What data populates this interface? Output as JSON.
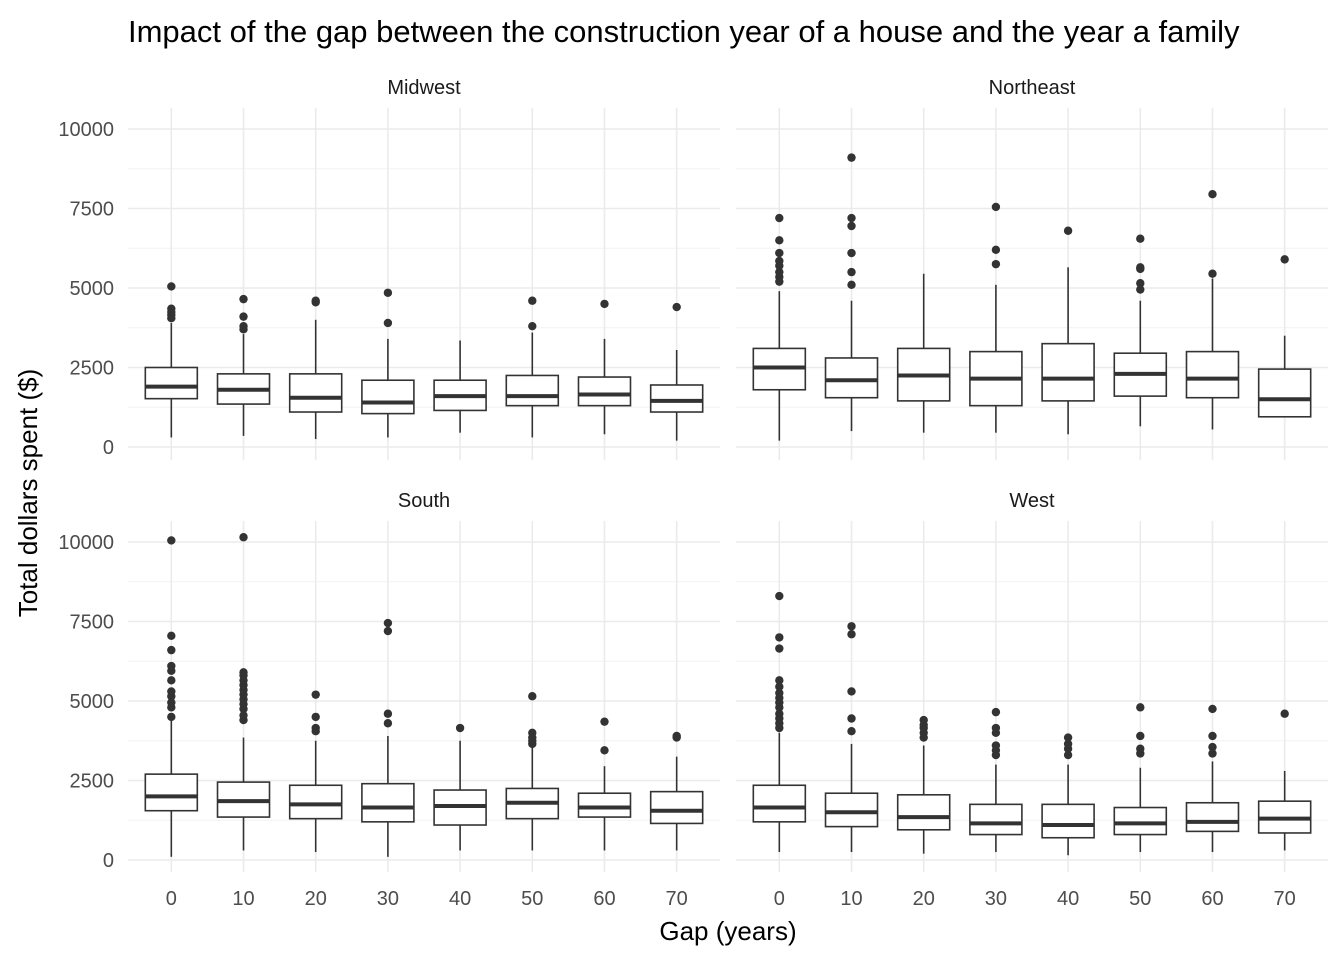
{
  "chart_data": {
    "type": "box",
    "title": "Impact of the gap between the construction year of a house and the year a family",
    "xlabel": "Gap (years)",
    "ylabel": "Total dollars spent ($)",
    "x_ticks": [
      0,
      10,
      20,
      30,
      40,
      50,
      60,
      70
    ],
    "y_ticks": [
      0,
      2500,
      5000,
      7500,
      10000
    ],
    "ylim": [
      -350,
      10600
    ],
    "xlim": [
      -6,
      76
    ],
    "grid": true,
    "box_color": "#333333",
    "panel_order": [
      "Midwest",
      "Northeast",
      "South",
      "West"
    ],
    "facets": [
      {
        "name": "Midwest",
        "boxes": [
          {
            "x": 0,
            "min": 300,
            "q1": 1520,
            "median": 1900,
            "q3": 2500,
            "max": 3900,
            "outliers": [
              4050,
              4150,
              4250,
              4350,
              5050
            ]
          },
          {
            "x": 10,
            "min": 350,
            "q1": 1350,
            "median": 1800,
            "q3": 2300,
            "max": 3550,
            "outliers": [
              3700,
              3800,
              4100,
              4650
            ]
          },
          {
            "x": 20,
            "min": 250,
            "q1": 1100,
            "median": 1550,
            "q3": 2300,
            "max": 4000,
            "outliers": [
              4550,
              4600
            ]
          },
          {
            "x": 30,
            "min": 300,
            "q1": 1050,
            "median": 1400,
            "q3": 2100,
            "max": 3400,
            "outliers": [
              3900,
              4850
            ]
          },
          {
            "x": 40,
            "min": 450,
            "q1": 1150,
            "median": 1600,
            "q3": 2100,
            "max": 3350,
            "outliers": []
          },
          {
            "x": 50,
            "min": 300,
            "q1": 1300,
            "median": 1600,
            "q3": 2250,
            "max": 3600,
            "outliers": [
              3800,
              4600
            ]
          },
          {
            "x": 60,
            "min": 400,
            "q1": 1300,
            "median": 1650,
            "q3": 2200,
            "max": 3400,
            "outliers": [
              4500
            ]
          },
          {
            "x": 70,
            "min": 200,
            "q1": 1100,
            "median": 1450,
            "q3": 1950,
            "max": 3050,
            "outliers": [
              4400
            ]
          }
        ]
      },
      {
        "name": "Northeast",
        "boxes": [
          {
            "x": 0,
            "min": 200,
            "q1": 1800,
            "median": 2500,
            "q3": 3100,
            "max": 4900,
            "outliers": [
              5200,
              5350,
              5500,
              5700,
              5850,
              6100,
              6500,
              7200
            ]
          },
          {
            "x": 10,
            "min": 500,
            "q1": 1550,
            "median": 2100,
            "q3": 2800,
            "max": 4600,
            "outliers": [
              5100,
              5500,
              6100,
              6950,
              7200,
              9100
            ]
          },
          {
            "x": 20,
            "min": 450,
            "q1": 1450,
            "median": 2250,
            "q3": 3100,
            "max": 5450,
            "outliers": []
          },
          {
            "x": 30,
            "min": 450,
            "q1": 1300,
            "median": 2150,
            "q3": 3000,
            "max": 5100,
            "outliers": [
              5750,
              6200,
              7550
            ]
          },
          {
            "x": 40,
            "min": 400,
            "q1": 1450,
            "median": 2150,
            "q3": 3250,
            "max": 5650,
            "outliers": [
              6800
            ]
          },
          {
            "x": 50,
            "min": 650,
            "q1": 1600,
            "median": 2300,
            "q3": 2950,
            "max": 4600,
            "outliers": [
              4950,
              5150,
              5600,
              5650,
              6550
            ]
          },
          {
            "x": 60,
            "min": 550,
            "q1": 1550,
            "median": 2150,
            "q3": 3000,
            "max": 5300,
            "outliers": [
              5450,
              7950
            ]
          },
          {
            "x": 70,
            "min": 950,
            "q1": 950,
            "median": 1500,
            "q3": 2450,
            "max": 3500,
            "outliers": [
              5900
            ]
          }
        ]
      },
      {
        "name": "South",
        "boxes": [
          {
            "x": 0,
            "min": 100,
            "q1": 1550,
            "median": 2000,
            "q3": 2700,
            "max": 4400,
            "outliers": [
              4500,
              4800,
              4950,
              5150,
              5300,
              5650,
              5950,
              6100,
              6600,
              7050,
              10050
            ]
          },
          {
            "x": 10,
            "min": 300,
            "q1": 1350,
            "median": 1850,
            "q3": 2450,
            "max": 3850,
            "outliers": [
              4400,
              4550,
              4750,
              4900,
              5050,
              5200,
              5350,
              5500,
              5650,
              5800,
              5900,
              10150
            ]
          },
          {
            "x": 20,
            "min": 250,
            "q1": 1300,
            "median": 1750,
            "q3": 2350,
            "max": 3750,
            "outliers": [
              4050,
              4150,
              4500,
              5200
            ]
          },
          {
            "x": 30,
            "min": 100,
            "q1": 1200,
            "median": 1650,
            "q3": 2400,
            "max": 3900,
            "outliers": [
              4300,
              4600,
              7200,
              7450
            ]
          },
          {
            "x": 40,
            "min": 300,
            "q1": 1100,
            "median": 1700,
            "q3": 2200,
            "max": 3750,
            "outliers": [
              4150
            ]
          },
          {
            "x": 50,
            "min": 300,
            "q1": 1300,
            "median": 1800,
            "q3": 2250,
            "max": 3550,
            "outliers": [
              3650,
              3750,
              3850,
              4000,
              5150
            ]
          },
          {
            "x": 60,
            "min": 300,
            "q1": 1350,
            "median": 1650,
            "q3": 2100,
            "max": 2950,
            "outliers": [
              3450,
              4350
            ]
          },
          {
            "x": 70,
            "min": 300,
            "q1": 1150,
            "median": 1550,
            "q3": 2150,
            "max": 3250,
            "outliers": [
              3850,
              3900
            ]
          }
        ]
      },
      {
        "name": "West",
        "boxes": [
          {
            "x": 0,
            "min": 250,
            "q1": 1200,
            "median": 1650,
            "q3": 2350,
            "max": 4000,
            "outliers": [
              4150,
              4300,
              4450,
              4600,
              4800,
              4950,
              5100,
              5250,
              5450,
              5650,
              6650,
              7000,
              8300
            ]
          },
          {
            "x": 10,
            "min": 250,
            "q1": 1050,
            "median": 1500,
            "q3": 2100,
            "max": 3650,
            "outliers": [
              4050,
              4450,
              5300,
              7100,
              7350
            ]
          },
          {
            "x": 20,
            "min": 200,
            "q1": 950,
            "median": 1350,
            "q3": 2050,
            "max": 3600,
            "outliers": [
              3850,
              4000,
              4150,
              4250,
              4400
            ]
          },
          {
            "x": 30,
            "min": 250,
            "q1": 800,
            "median": 1150,
            "q3": 1750,
            "max": 3000,
            "outliers": [
              3300,
              3450,
              3600,
              4000,
              4150,
              4650
            ]
          },
          {
            "x": 40,
            "min": 150,
            "q1": 700,
            "median": 1100,
            "q3": 1750,
            "max": 3000,
            "outliers": [
              3300,
              3500,
              3650,
              3850
            ]
          },
          {
            "x": 50,
            "min": 250,
            "q1": 800,
            "median": 1150,
            "q3": 1650,
            "max": 2900,
            "outliers": [
              3350,
              3500,
              3900,
              4800
            ]
          },
          {
            "x": 60,
            "min": 250,
            "q1": 900,
            "median": 1200,
            "q3": 1800,
            "max": 3100,
            "outliers": [
              3350,
              3550,
              3900,
              4750
            ]
          },
          {
            "x": 70,
            "min": 300,
            "q1": 850,
            "median": 1300,
            "q3": 1850,
            "max": 2800,
            "outliers": [
              4600
            ]
          }
        ]
      }
    ]
  }
}
